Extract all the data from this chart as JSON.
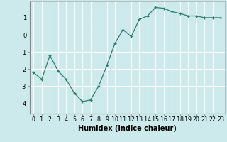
{
  "x": [
    0,
    1,
    2,
    3,
    4,
    5,
    6,
    7,
    8,
    9,
    10,
    11,
    12,
    13,
    14,
    15,
    16,
    17,
    18,
    19,
    20,
    21,
    22,
    23
  ],
  "y": [
    -2.2,
    -2.6,
    -1.2,
    -2.1,
    -2.6,
    -3.4,
    -3.9,
    -3.8,
    -3.0,
    -1.8,
    -0.5,
    0.3,
    -0.1,
    0.9,
    1.1,
    1.6,
    1.55,
    1.35,
    1.25,
    1.1,
    1.1,
    1.0,
    1.0,
    1.0
  ],
  "line_color": "#2e7d6e",
  "marker": "+",
  "marker_size": 3.5,
  "bg_color": "#cce9eb",
  "grid_color": "#ffffff",
  "xlabel": "Humidex (Indice chaleur)",
  "xlabel_fontsize": 7,
  "yticks": [
    -4,
    -3,
    -2,
    -1,
    0,
    1
  ],
  "xticks": [
    0,
    1,
    2,
    3,
    4,
    5,
    6,
    7,
    8,
    9,
    10,
    11,
    12,
    13,
    14,
    15,
    16,
    17,
    18,
    19,
    20,
    21,
    22,
    23
  ],
  "tick_fontsize": 6,
  "ylim": [
    -4.6,
    1.95
  ],
  "xlim": [
    -0.5,
    23.5
  ]
}
